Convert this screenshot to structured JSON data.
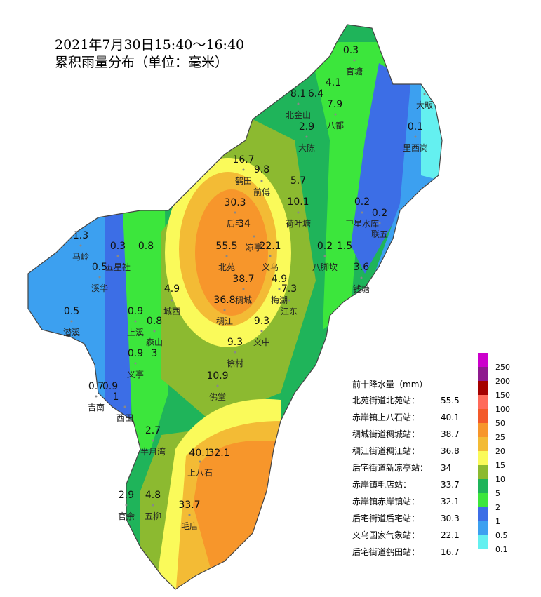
{
  "title": [
    "2021年7月30日15:40～16:40",
    "累积雨量分布（单位：毫米）"
  ],
  "rain_values": [
    0.3,
    4.1,
    8.1,
    6.4,
    7.9,
    2.9,
    16.7,
    9.8,
    5.7,
    10.1,
    0.2,
    0.2,
    30.3,
    34,
    55.5,
    22.1,
    0.2,
    1.5,
    3.6,
    38.7,
    4.9,
    7.3,
    4.9,
    36.8,
    9.3,
    9.3,
    1.3,
    0.3,
    0.8,
    0.5,
    0.5,
    0.9,
    0.8,
    0.9,
    3,
    10.9,
    0.7,
    0.9,
    1,
    2.7,
    40.1,
    32.1,
    2.9,
    4.8,
    33.7,
    0.1
  ],
  "place_names": [
    "官塘",
    "北金山",
    "八都",
    "大陈",
    "鹤田",
    "前傅",
    "后宅",
    "凉亭",
    "荷叶塘",
    "卫星水库",
    "联五",
    "北苑",
    "义乌",
    "八脚坎",
    "钱塘",
    "稠城",
    "梅湖",
    "江东",
    "城西",
    "稠江",
    "义中",
    "徐村",
    "佛堂",
    "马岭",
    "五星社",
    "溪华",
    "潜溪",
    "上溪",
    "森山",
    "义亭",
    "吉南",
    "西田",
    "半月湾",
    "上八石",
    "官余",
    "五柳",
    "毛店",
    "大畈",
    "里西岗"
  ],
  "top10": {
    "title": "前十降水量（mm）",
    "rows": [
      {
        "station": "北苑街道北苑站：",
        "value": 55.5
      },
      {
        "station": "赤岸镇上八石站：",
        "value": 40.1
      },
      {
        "station": "稠城街道稠城站：",
        "value": 38.7
      },
      {
        "station": "稠江街道稠江站：",
        "value": 36.8
      },
      {
        "station": "后宅街道新凉亭站：",
        "value": 34
      },
      {
        "station": "赤岸镇毛店站：",
        "value": 33.7
      },
      {
        "station": "赤岸镇赤岸镇站：",
        "value": 32.1
      },
      {
        "station": "后宅街道后宅站：",
        "value": 30.3
      },
      {
        "station": "义乌国家气象站：",
        "value": 22.1
      },
      {
        "station": "后宅街道鹤田站：",
        "value": 16.7
      }
    ]
  },
  "color_scale": [
    {
      "value": 250,
      "color": "#cc00cc"
    },
    {
      "value": 200,
      "color": "#8e1a8e"
    },
    {
      "value": 150,
      "color": "#a50000"
    },
    {
      "value": 100,
      "color": "#ff6a5a"
    },
    {
      "value": 50,
      "color": "#f35a2a"
    },
    {
      "value": 25,
      "color": "#f7962b"
    },
    {
      "value": 20,
      "color": "#f3bb35"
    },
    {
      "value": 15,
      "color": "#fafa5a"
    },
    {
      "value": 10,
      "color": "#8cba30"
    },
    {
      "value": 5,
      "color": "#1fb45a"
    },
    {
      "value": 2,
      "color": "#3ce63c"
    },
    {
      "value": 1,
      "color": "#3c6ee6"
    },
    {
      "value": 0.5,
      "color": "#3ca0f0"
    },
    {
      "value": 0.1,
      "color": "#64f0f0"
    }
  ]
}
